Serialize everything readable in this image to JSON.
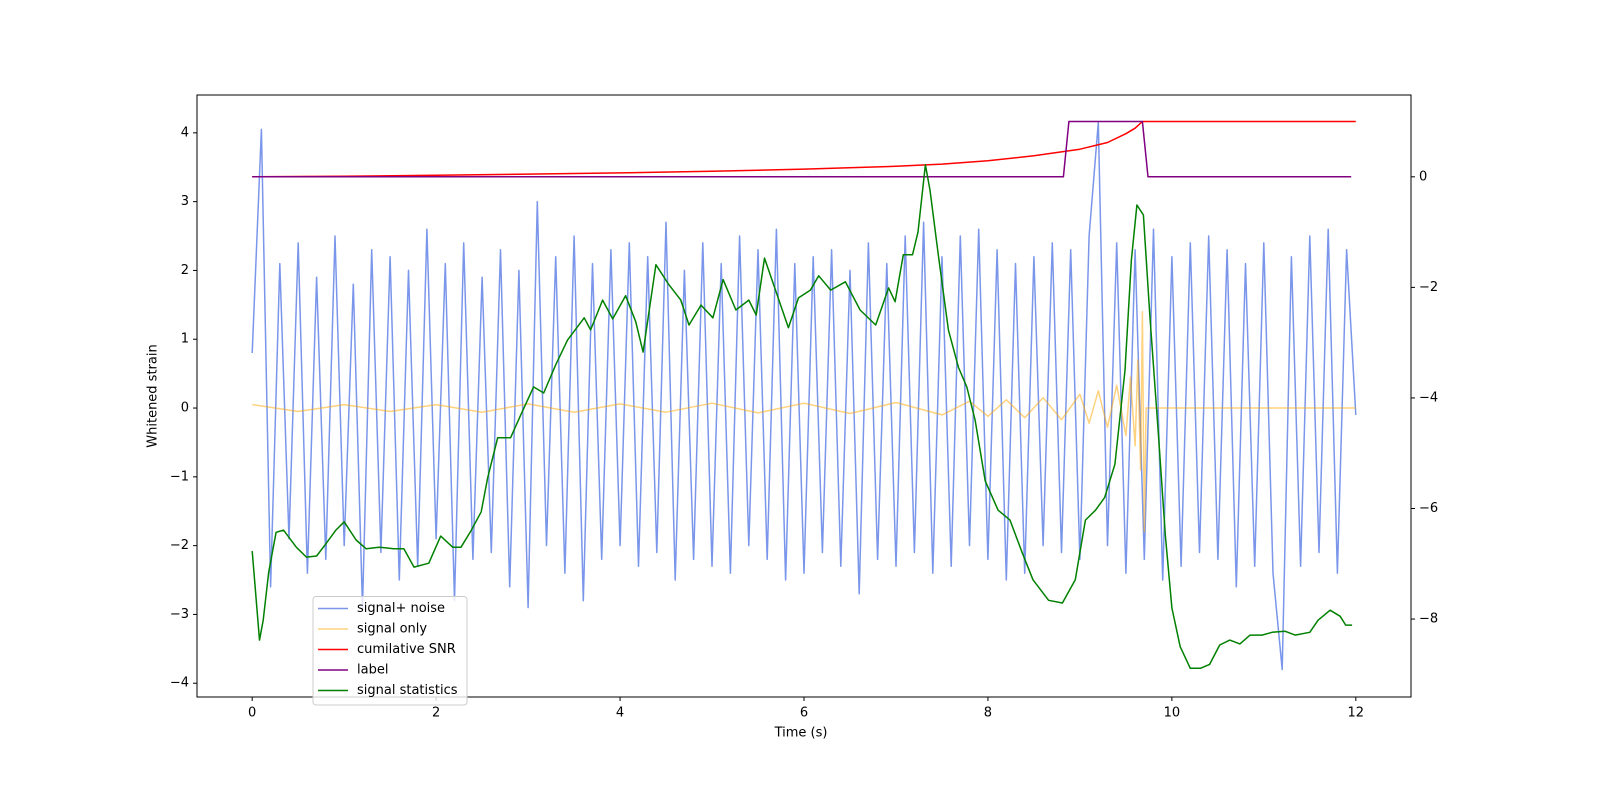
{
  "chart_data": {
    "type": "line",
    "xlabel": "Time (s)",
    "ylabel": "Whitened strain",
    "xlim": [
      -0.6,
      12.6
    ],
    "ylim": [
      -4.2,
      4.55
    ],
    "y2lim": [
      -9.41,
      1.48
    ],
    "xticks": [
      0,
      2,
      4,
      6,
      8,
      10,
      12
    ],
    "yticks": [
      {
        "value": -4,
        "label": "−4"
      },
      {
        "value": -3,
        "label": "−3"
      },
      {
        "value": -2,
        "label": "−2"
      },
      {
        "value": -1,
        "label": "−1"
      },
      0,
      1,
      2,
      3,
      4
    ],
    "y2ticks": [
      {
        "value": -8,
        "label": "−8"
      },
      {
        "value": -6,
        "label": "−6"
      },
      {
        "value": -4,
        "label": "−4"
      },
      {
        "value": -2,
        "label": "−2"
      },
      0
    ],
    "legend": "lower left",
    "series": [
      {
        "name": "signal+ noise",
        "color": "#4169e1",
        "opacity": 0.7,
        "x": [
          0,
          0.1,
          0.2,
          0.3,
          0.4,
          0.5,
          0.6,
          0.7,
          0.8,
          0.9,
          1,
          1.1,
          1.2,
          1.3,
          1.4,
          1.5,
          1.6,
          1.7,
          1.8,
          1.9,
          2,
          2.1,
          2.2,
          2.3,
          2.4,
          2.5,
          2.6,
          2.7,
          2.8,
          2.9,
          3,
          3.1,
          3.2,
          3.3,
          3.4,
          3.5,
          3.6,
          3.7,
          3.8,
          3.9,
          4,
          4.1,
          4.2,
          4.3,
          4.4,
          4.5,
          4.6,
          4.7,
          4.8,
          4.9,
          5,
          5.1,
          5.2,
          5.3,
          5.4,
          5.5,
          5.6,
          5.7,
          5.8,
          5.9,
          6,
          6.1,
          6.2,
          6.3,
          6.4,
          6.5,
          6.6,
          6.7,
          6.8,
          6.9,
          7,
          7.1,
          7.2,
          7.3,
          7.4,
          7.5,
          7.6,
          7.7,
          7.8,
          7.9,
          8,
          8.1,
          8.2,
          8.3,
          8.4,
          8.5,
          8.6,
          8.7,
          8.8,
          8.9,
          9,
          9.1,
          9.2,
          9.3,
          9.4,
          9.5,
          9.6,
          9.7,
          9.8,
          9.9,
          10,
          10.1,
          10.2,
          10.3,
          10.4,
          10.5,
          10.6,
          10.7,
          10.8,
          10.9,
          11,
          11.1,
          11.2,
          11.3,
          11.4,
          11.5,
          11.6,
          11.7,
          11.8,
          11.9,
          12
        ],
        "values": [
          0.8,
          4.05,
          -2.6,
          2.1,
          -1.9,
          2.4,
          -2.4,
          1.9,
          -2.2,
          2.5,
          -2.0,
          1.8,
          -2.9,
          2.3,
          -2.1,
          2.2,
          -2.5,
          2.0,
          -2.3,
          2.6,
          -1.9,
          2.1,
          -2.8,
          2.4,
          -2.2,
          1.9,
          -2.1,
          2.3,
          -2.6,
          2.0,
          -2.9,
          3.0,
          -2.0,
          2.2,
          -2.4,
          2.5,
          -2.8,
          2.1,
          -2.2,
          2.3,
          -2.0,
          2.4,
          -2.3,
          2.2,
          -2.1,
          2.7,
          -2.5,
          2.0,
          -2.2,
          2.4,
          -2.3,
          2.1,
          -2.4,
          2.5,
          -2.0,
          2.3,
          -2.2,
          2.6,
          -2.5,
          2.1,
          -2.4,
          2.2,
          -2.1,
          2.3,
          -2.3,
          2.0,
          -2.7,
          2.4,
          -2.2,
          2.1,
          -2.3,
          2.5,
          -2.1,
          2.7,
          -2.4,
          2.2,
          -2.3,
          2.5,
          -2.0,
          2.6,
          -2.2,
          2.3,
          -2.5,
          2.1,
          -2.4,
          2.2,
          -2.0,
          2.4,
          -2.1,
          2.3,
          -2.2,
          2.5,
          4.15,
          -2.0,
          2.4,
          -2.4,
          2.3,
          -2.2,
          2.6,
          -2.5,
          2.2,
          -2.3,
          2.4,
          -2.1,
          2.5,
          -2.2,
          2.3,
          -2.6,
          2.1,
          -2.3,
          2.4,
          -2.4,
          -3.8,
          2.2,
          -2.3,
          2.5,
          -2.1,
          2.6,
          -2.4,
          2.3,
          -0.1
        ]
      },
      {
        "name": "signal only",
        "color": "#ffa500",
        "opacity": 0.5,
        "x": [
          0,
          0.5,
          1,
          1.5,
          2,
          2.5,
          3,
          3.5,
          4,
          4.5,
          5,
          5.5,
          6,
          6.5,
          7,
          7.5,
          7.8,
          8,
          8.2,
          8.4,
          8.6,
          8.8,
          9.0,
          9.1,
          9.2,
          9.3,
          9.4,
          9.5,
          9.55,
          9.6,
          9.63,
          9.66,
          9.68,
          9.7,
          9.72,
          12
        ],
        "values": [
          0.05,
          -0.05,
          0.05,
          -0.05,
          0.05,
          -0.06,
          0.06,
          -0.06,
          0.06,
          -0.06,
          0.07,
          -0.07,
          0.07,
          -0.08,
          0.08,
          -0.1,
          0.1,
          -0.12,
          0.12,
          -0.14,
          0.15,
          -0.17,
          0.2,
          -0.22,
          0.25,
          -0.28,
          0.33,
          -0.4,
          0.45,
          -0.55,
          0.7,
          -0.9,
          1.4,
          -1.8,
          0,
          0
        ]
      },
      {
        "name": "cumilative SNR",
        "color": "#ff0000",
        "axis": "y2",
        "x": [
          0,
          1,
          2,
          3,
          4,
          5,
          6,
          7,
          7.5,
          8,
          8.5,
          9,
          9.3,
          9.5,
          9.6,
          9.68,
          12
        ],
        "values": [
          0,
          0.01,
          0.03,
          0.05,
          0.07,
          0.1,
          0.14,
          0.19,
          0.23,
          0.29,
          0.38,
          0.5,
          0.62,
          0.78,
          0.88,
          1,
          1
        ]
      },
      {
        "name": "label",
        "color": "#800080",
        "axis": "y2",
        "x": [
          0,
          8.82,
          8.88,
          9.68,
          9.74,
          11.95
        ],
        "values": [
          0,
          0,
          1,
          1,
          0,
          0
        ]
      },
      {
        "name": "signal statistics",
        "color": "#008000",
        "axis": "y2",
        "x": [
          0,
          0.08,
          0.12,
          0.18,
          0.26,
          0.34,
          0.48,
          0.59,
          0.7,
          0.8,
          0.91,
          1.0,
          1.13,
          1.24,
          1.38,
          1.54,
          1.65,
          1.76,
          1.92,
          2.05,
          2.18,
          2.27,
          2.38,
          2.49,
          2.56,
          2.67,
          2.81,
          2.92,
          3.06,
          3.17,
          3.3,
          3.43,
          3.61,
          3.68,
          3.81,
          3.92,
          4.06,
          4.17,
          4.25,
          4.39,
          4.53,
          4.66,
          4.75,
          4.88,
          5.01,
          5.12,
          5.26,
          5.4,
          5.48,
          5.57,
          5.69,
          5.83,
          5.94,
          6.07,
          6.16,
          6.29,
          6.45,
          6.61,
          6.78,
          6.92,
          6.99,
          7.08,
          7.18,
          7.24,
          7.32,
          7.37,
          7.46,
          7.57,
          7.68,
          7.77,
          7.86,
          7.97,
          8.11,
          8.24,
          8.37,
          8.49,
          8.66,
          8.81,
          8.95,
          9.06,
          9.17,
          9.27,
          9.38,
          9.49,
          9.56,
          9.62,
          9.69,
          9.76,
          9.85,
          9.93,
          10.0,
          10.09,
          10.2,
          10.31,
          10.41,
          10.52,
          10.63,
          10.74,
          10.85,
          10.98,
          11.09,
          11.23,
          11.34,
          11.5,
          11.59,
          11.72,
          11.83,
          11.89,
          11.96
        ],
        "values": [
          -6.77,
          -8.38,
          -8.02,
          -7.15,
          -6.43,
          -6.39,
          -6.7,
          -6.88,
          -6.86,
          -6.64,
          -6.39,
          -6.24,
          -6.57,
          -6.73,
          -6.7,
          -6.73,
          -6.73,
          -7.06,
          -6.99,
          -6.5,
          -6.7,
          -6.7,
          -6.4,
          -6.06,
          -5.45,
          -4.72,
          -4.72,
          -4.31,
          -3.8,
          -3.91,
          -3.4,
          -2.95,
          -2.55,
          -2.77,
          -2.23,
          -2.57,
          -2.15,
          -2.62,
          -3.17,
          -1.59,
          -1.95,
          -2.23,
          -2.68,
          -2.32,
          -2.55,
          -1.86,
          -2.41,
          -2.23,
          -2.5,
          -1.47,
          -2.05,
          -2.73,
          -2.19,
          -2.05,
          -1.79,
          -2.05,
          -1.9,
          -2.41,
          -2.68,
          -2.01,
          -2.26,
          -1.41,
          -1.41,
          -1.0,
          0.22,
          -0.24,
          -1.41,
          -2.77,
          -3.45,
          -3.8,
          -4.4,
          -5.5,
          -6.03,
          -6.21,
          -6.79,
          -7.29,
          -7.66,
          -7.71,
          -7.29,
          -6.21,
          -6.03,
          -5.8,
          -5.2,
          -3.5,
          -1.5,
          -0.51,
          -0.69,
          -2.5,
          -4.58,
          -6.5,
          -7.8,
          -8.5,
          -8.89,
          -8.89,
          -8.82,
          -8.47,
          -8.38,
          -8.45,
          -8.29,
          -8.29,
          -8.24,
          -8.22,
          -8.29,
          -8.24,
          -8.02,
          -7.84,
          -7.95,
          -8.11,
          -8.11
        ]
      }
    ]
  }
}
